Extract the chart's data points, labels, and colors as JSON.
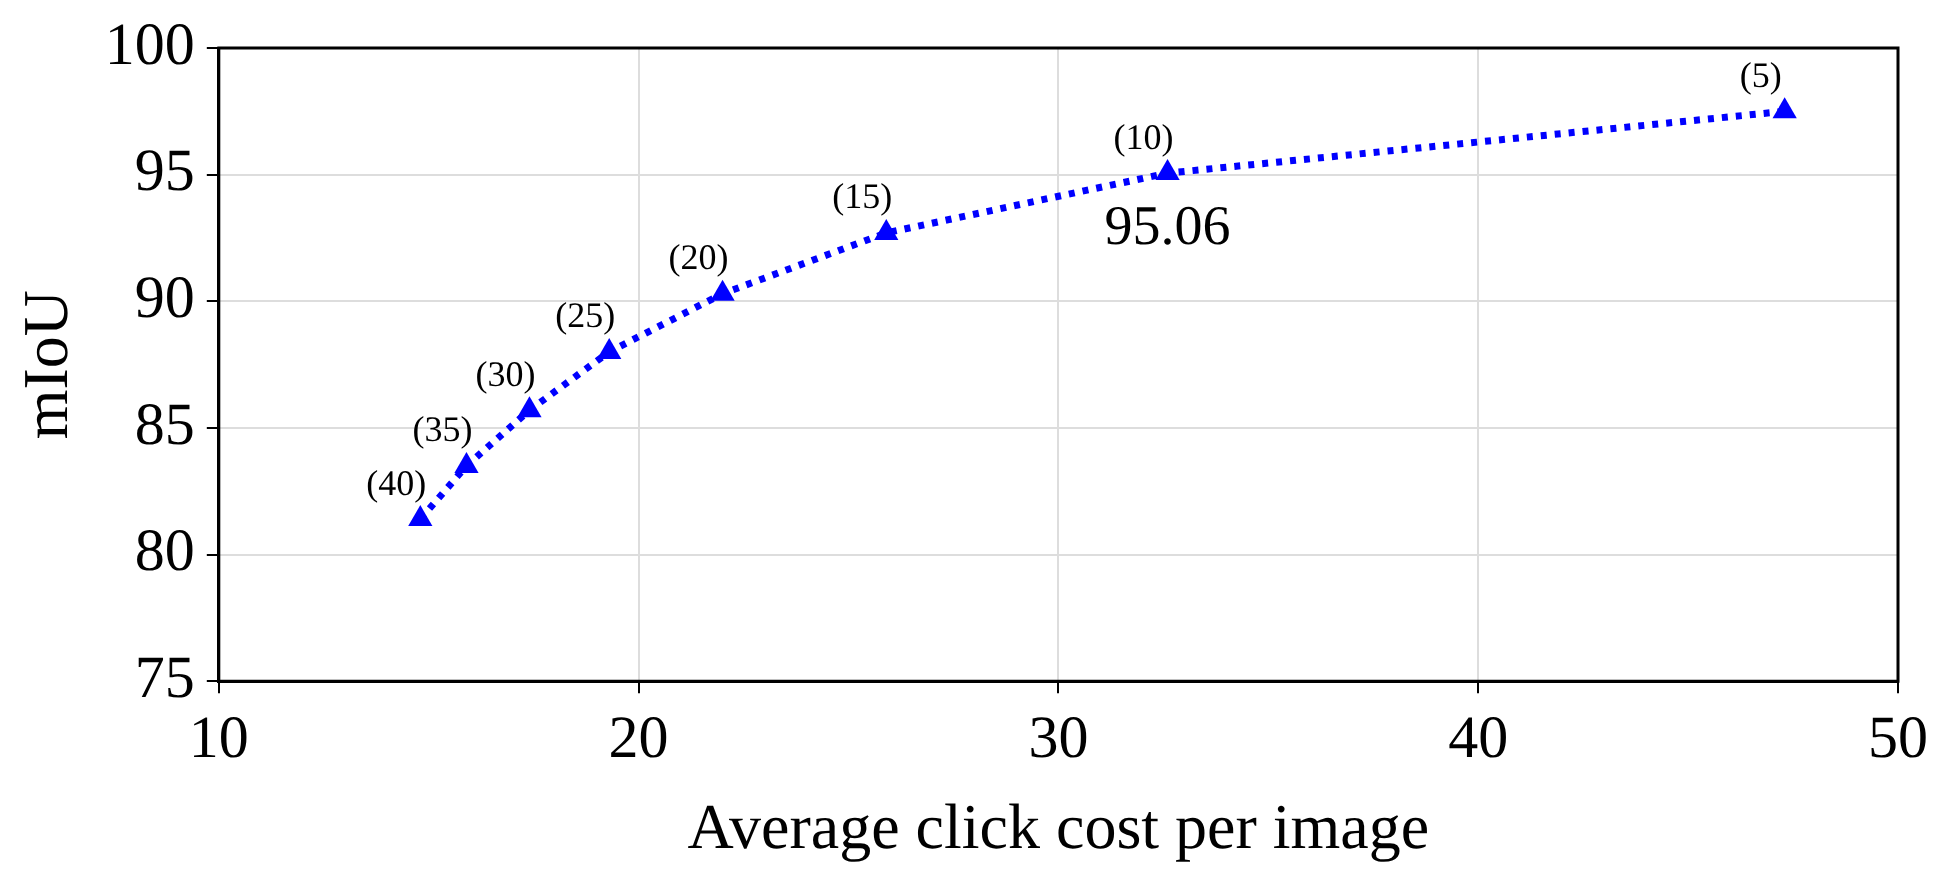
{
  "chart_data": {
    "type": "line",
    "xlabel": "Average click cost per image",
    "ylabel": "mIoU",
    "x": [
      14.8,
      15.9,
      17.4,
      19.3,
      22.0,
      25.9,
      32.6,
      47.3
    ],
    "series": [
      {
        "color": "#0000ff",
        "values": [
          81.4,
          83.5,
          85.7,
          88.0,
          90.3,
          92.7,
          95.06,
          97.5
        ]
      }
    ],
    "xlim": [
      10,
      50
    ],
    "xticks": [
      10,
      20,
      30,
      40,
      50
    ],
    "ylim": [
      75,
      100
    ],
    "yticks": [
      75,
      80,
      85,
      90,
      95,
      100
    ],
    "grid": true,
    "legend": false,
    "marker": "triangle",
    "line_style": "dotted",
    "annotations": [
      {
        "text": "(40)",
        "x": 14.8,
        "y": 81.4
      },
      {
        "text": "(35)",
        "x": 15.9,
        "y": 83.5
      },
      {
        "text": "(30)",
        "x": 17.4,
        "y": 85.7
      },
      {
        "text": "(25)",
        "x": 19.3,
        "y": 88.0
      },
      {
        "text": "(20)",
        "x": 22.0,
        "y": 90.3
      },
      {
        "text": "(15)",
        "x": 25.9,
        "y": 92.7
      },
      {
        "text": "(10)",
        "x": 32.6,
        "y": 95.06
      },
      {
        "text": "(5)",
        "x": 47.3,
        "y": 97.5
      },
      {
        "text": "95.06",
        "x": 32.6,
        "y": 95.06
      }
    ]
  }
}
